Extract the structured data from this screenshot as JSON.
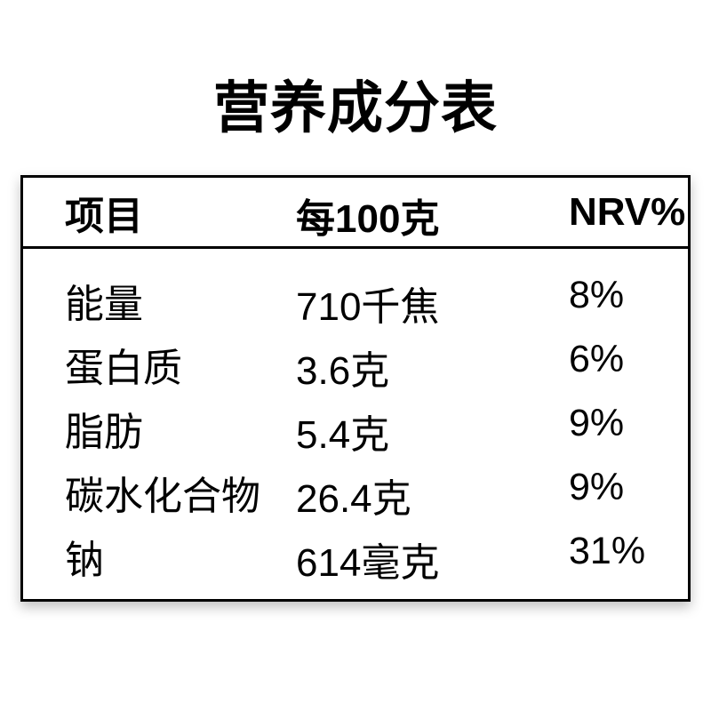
{
  "title": "营养成分表",
  "table": {
    "headers": {
      "item": "项目",
      "per_100g": "每100克",
      "nrv": "NRV%"
    },
    "rows": [
      {
        "item": "能量",
        "value": "710千焦",
        "nrv": "8%"
      },
      {
        "item": "蛋白质",
        "value": "3.6克",
        "nrv": "6%"
      },
      {
        "item": "脂肪",
        "value": "5.4克",
        "nrv": "9%"
      },
      {
        "item": "碳水化合物",
        "value": "26.4克",
        "nrv": "9%"
      },
      {
        "item": "钠",
        "value": "614毫克",
        "nrv": "31%"
      }
    ]
  },
  "colors": {
    "text": "#000000",
    "border": "#000000",
    "background": "#ffffff"
  }
}
